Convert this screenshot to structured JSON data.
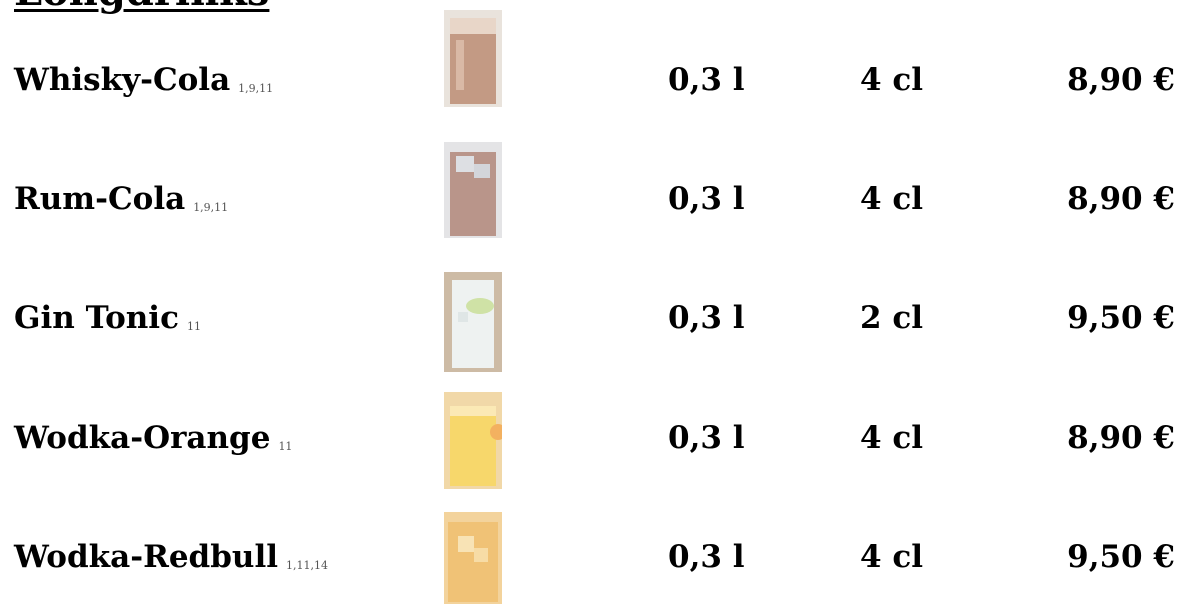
{
  "header": {
    "title": "Longdrinks"
  },
  "items": [
    {
      "name": "Whisky-Cola",
      "notes": "1,9,11",
      "volume": "0,3 l",
      "amount": "4 cl",
      "price": "8,90 €"
    },
    {
      "name": "Rum-Cola",
      "notes": "1,9,11",
      "volume": "0,3 l",
      "amount": "4 cl",
      "price": "8,90 €"
    },
    {
      "name": "Gin Tonic",
      "notes": "11",
      "volume": "0,3 l",
      "amount": "2 cl",
      "price": "9,50 €"
    },
    {
      "name": "Wodka-Orange",
      "notes": "11",
      "volume": "0,3 l",
      "amount": "4 cl",
      "price": "8,90 €"
    },
    {
      "name": "Wodka-Redbull",
      "notes": "1,11,14",
      "volume": "0,3 l",
      "amount": "4 cl",
      "price": "9,50 €"
    }
  ]
}
